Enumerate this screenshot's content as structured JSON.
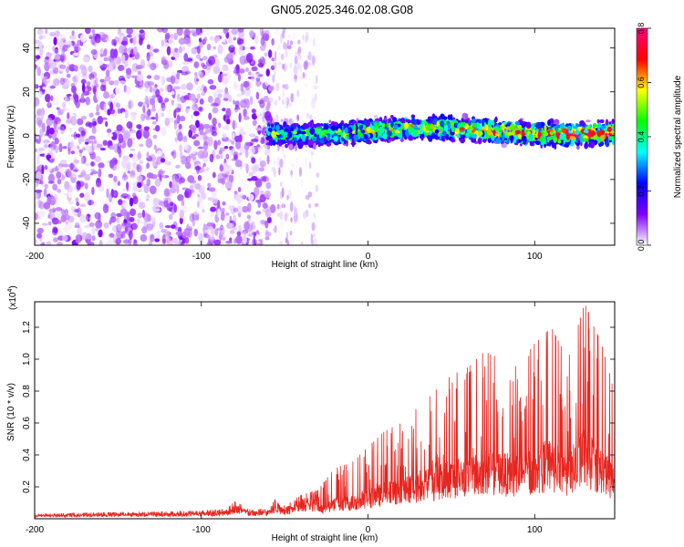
{
  "title": "GN05.2025.346.02.08.G08",
  "chart_data": [
    {
      "type": "heatmap",
      "xlabel": "Height of straight line (km)",
      "ylabel": "Frequency (Hz)",
      "xlim": [
        -200,
        148
      ],
      "ylim": [
        -50,
        49
      ],
      "xticks": [
        -200,
        -100,
        0,
        100
      ],
      "yticks": [
        -40,
        -20,
        0,
        20,
        40
      ],
      "colorbar": {
        "label": "Normalized spectral amplitude",
        "range": [
          0,
          0.8
        ],
        "ticks": [
          "0.0",
          "0.2",
          "0.4",
          "0.6",
          "0.8"
        ],
        "colors": [
          "#ffffff",
          "#7f00ff",
          "#0000ff",
          "#00ffff",
          "#00ff00",
          "#ffff00",
          "#ff0000",
          "#ff0080"
        ]
      },
      "regions": [
        {
          "x_range": [
            -200,
            -57
          ],
          "freq_range": [
            -50,
            49
          ],
          "amplitude": 0.05,
          "pattern": "scattered noise"
        },
        {
          "x_range": [
            -57,
            -30
          ],
          "freq_range": [
            -50,
            49
          ],
          "amplitude": 0.02,
          "pattern": "sparse streaks"
        },
        {
          "x_range": [
            -60,
            148
          ],
          "freq_center": 2,
          "freq_halfwidth": 7,
          "amplitude": 0.5,
          "pattern": "signal band"
        }
      ]
    },
    {
      "type": "line",
      "xlabel": "Height of straight line (km)",
      "ylabel": "SNR (10 * v/v)",
      "yscale_label": "(x10",
      "yscale_exp": "4",
      "xlim": [
        -200,
        148
      ],
      "ylim": [
        0,
        13600
      ],
      "xticks": [
        -200,
        -100,
        0,
        100
      ],
      "yticks": [
        "0.2",
        "0.4",
        "0.6",
        "0.8",
        "1.0",
        "1.2"
      ],
      "color": "#e8251f",
      "series": [
        {
          "x": [
            -200,
            -180,
            -160,
            -140,
            -120,
            -100,
            -85,
            -80,
            -70,
            -60,
            -55,
            -50,
            -40,
            -30,
            -20,
            -10,
            0,
            10,
            20,
            30,
            40,
            50,
            60,
            70,
            80,
            90,
            100,
            110,
            120,
            130,
            140,
            148
          ],
          "y": [
            300,
            350,
            400,
            420,
            450,
            500,
            600,
            1100,
            550,
            650,
            1300,
            800,
            1500,
            1800,
            3200,
            3500,
            4500,
            5500,
            6000,
            7000,
            8000,
            9000,
            9500,
            10500,
            10000,
            9500,
            11000,
            12000,
            10000,
            13500,
            11000,
            8000
          ]
        }
      ]
    }
  ]
}
